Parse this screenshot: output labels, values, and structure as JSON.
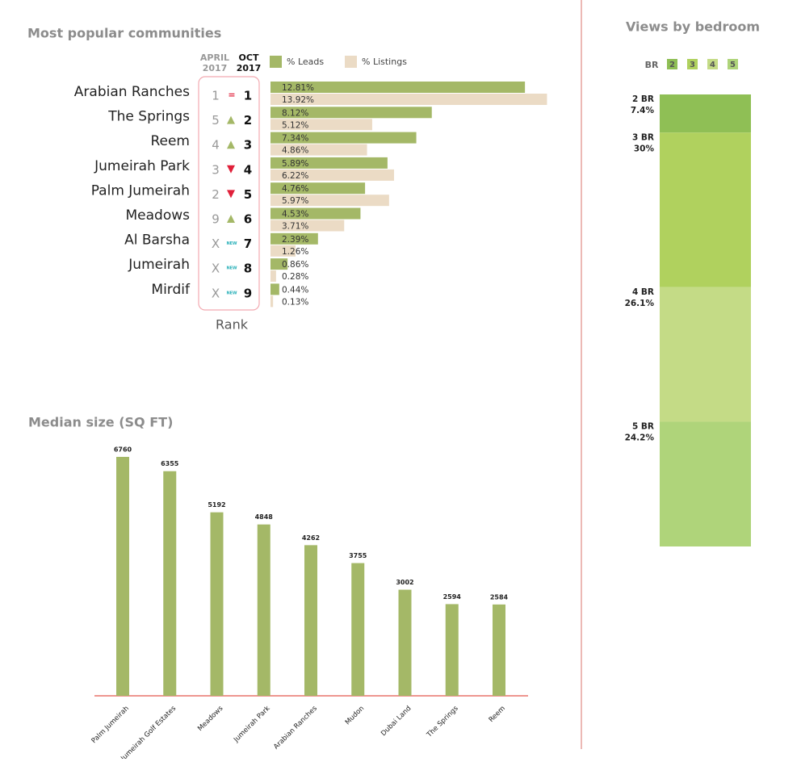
{
  "chart_data": [
    {
      "type": "bar",
      "orientation": "horizontal",
      "title": "Most popular communities",
      "categories": [
        "Arabian Ranches",
        "The Springs",
        "Reem",
        "Jumeirah Park",
        "Palm Jumeirah",
        "Meadows",
        "Al Barsha",
        "Jumeirah",
        "Mirdif"
      ],
      "series": [
        {
          "name": "% Leads",
          "color": "#a4b867",
          "values": [
            12.81,
            8.12,
            7.34,
            5.89,
            4.76,
            4.53,
            2.39,
            0.86,
            0.44
          ],
          "value_labels": [
            "12.81%",
            "8.12%",
            "7.34%",
            "5.89%",
            "4.76%",
            "4.53%",
            "2.39%",
            "0.86%",
            "0.44%"
          ]
        },
        {
          "name": "% Listings",
          "color": "#ebdbc5",
          "values": [
            13.92,
            5.12,
            4.86,
            6.22,
            5.97,
            3.71,
            1.26,
            0.28,
            0.13
          ],
          "value_labels": [
            "13.92%",
            "5.12%",
            "4.86%",
            "6.22%",
            "5.97%",
            "3.71%",
            "1.26%",
            "0.28%",
            "0.13%"
          ]
        }
      ],
      "rank_title": "Rank",
      "rank_columns": [
        {
          "label": "APRIL",
          "year": "2017",
          "values": [
            1,
            5,
            4,
            3,
            2,
            9,
            "X",
            "X",
            "X"
          ]
        },
        {
          "label": "OCT",
          "year": "2017",
          "values": [
            1,
            2,
            3,
            4,
            5,
            6,
            7,
            8,
            9
          ]
        }
      ],
      "rank_change": [
        "=",
        "up",
        "up",
        "down",
        "down",
        "up",
        "NEW",
        "NEW",
        "NEW"
      ]
    },
    {
      "type": "stacked-bar",
      "title": "Views by bedroom",
      "legend_title": "BR",
      "legend_labels": [
        "2",
        "3",
        "4",
        "5"
      ],
      "categories": [
        "2 BR",
        "3 BR",
        "4 BR",
        "5 BR"
      ],
      "values": [
        7.4,
        30,
        26.1,
        24.2
      ],
      "value_labels": [
        "7.4%",
        "30%",
        "26.1%",
        "24.2%"
      ],
      "colors": [
        "#8fbf55",
        "#b0d15e",
        "#c4db86",
        "#afd47a"
      ]
    },
    {
      "type": "bar",
      "orientation": "vertical",
      "title": "Median size (SQ FT)",
      "color": "#a4b867",
      "categories": [
        "Palm Jumeirah",
        "Jumeirah Golf Estates",
        "Meadows",
        "Jumeirah Park",
        "Arabian Ranches",
        "Mudon",
        "Dubai Land",
        "The Springs",
        "Reem"
      ],
      "values": [
        6760,
        6355,
        5192,
        4848,
        4262,
        3755,
        3002,
        2594,
        2584
      ]
    }
  ]
}
